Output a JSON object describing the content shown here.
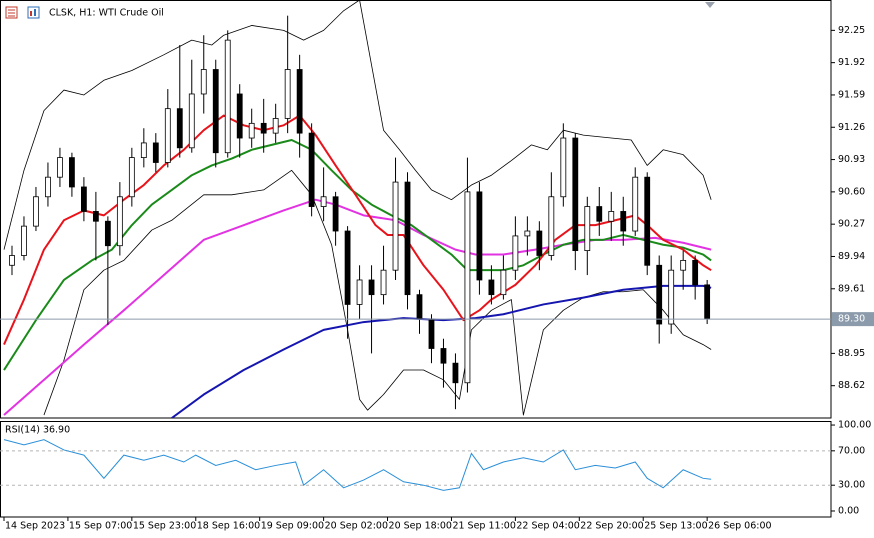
{
  "chart_data": [
    {
      "type": "candlestick",
      "title": "CLSK, H1:  WTI Crude Oil",
      "x": [
        2,
        5,
        8,
        11,
        14,
        17,
        20,
        23,
        26,
        29,
        32,
        35,
        38,
        41,
        44,
        47,
        50,
        53,
        56,
        59,
        62,
        65,
        68,
        71,
        74,
        77,
        80,
        83,
        86,
        89,
        92,
        95,
        98,
        101,
        104,
        107,
        110,
        113,
        116,
        119,
        122,
        125,
        128,
        131,
        134,
        137,
        140,
        143,
        146,
        149,
        152,
        155,
        158,
        161,
        164,
        167,
        170,
        173,
        176
      ],
      "open": [
        89.85,
        89.95,
        90.25,
        90.55,
        90.75,
        90.95,
        90.65,
        90.4,
        90.3,
        90.05,
        90.55,
        90.95,
        91.1,
        90.9,
        91.45,
        91.05,
        91.6,
        91.85,
        91,
        91.6,
        91.15,
        91.3,
        91.2,
        91.35,
        91.85,
        91.2,
        90.45,
        90.55,
        90.2,
        89.45,
        89.7,
        89.55,
        89.8,
        90.7,
        89.55,
        89.3,
        89,
        88.85,
        88.65,
        90.6,
        89.7,
        89.55,
        89.8,
        90.15,
        90.2,
        89.95,
        90.55,
        91.15,
        90,
        90.45,
        90.3,
        90.4,
        90.2,
        90.75,
        89.85,
        89.25,
        89.8,
        89.9,
        89.65
      ],
      "high": [
        90.05,
        90.35,
        90.65,
        90.9,
        91.05,
        91,
        90.75,
        90.6,
        90.35,
        90.7,
        91.05,
        91.25,
        91.2,
        91.65,
        92.1,
        91.95,
        92.2,
        91.95,
        92.25,
        91.7,
        91.45,
        91.55,
        91.5,
        92.4,
        92,
        91.3,
        90.85,
        90.6,
        90.25,
        89.85,
        89.85,
        90.05,
        90.95,
        90.8,
        89.6,
        89.35,
        89.1,
        88.95,
        90.95,
        90.7,
        89.85,
        89.95,
        90.35,
        90.35,
        90.3,
        90.8,
        91.3,
        91.2,
        90.55,
        90.65,
        90.6,
        90.55,
        90.85,
        90.8,
        89.95,
        89.95,
        90,
        89.95,
        89.7
      ],
      "low": [
        89.75,
        89.9,
        90.2,
        90.45,
        90.65,
        90.55,
        90.3,
        89.9,
        89.24,
        89.95,
        90.45,
        90.85,
        90.8,
        90.85,
        90.95,
        91,
        91.4,
        90.85,
        90.95,
        90.95,
        91.05,
        91,
        91.1,
        91.2,
        90.95,
        90.35,
        90.3,
        90.05,
        89.1,
        89.3,
        88.95,
        89.45,
        89.7,
        89.4,
        89.15,
        88.85,
        88.6,
        88.38,
        88.55,
        89.55,
        89.45,
        89.5,
        89.7,
        89.95,
        89.8,
        89.9,
        90.45,
        89.8,
        89.75,
        90.15,
        90.1,
        90.05,
        90.15,
        89.75,
        89.05,
        89.15,
        89.6,
        89.5,
        89.25
      ],
      "close": [
        89.95,
        90.25,
        90.55,
        90.75,
        90.95,
        90.65,
        90.4,
        90.3,
        90.05,
        90.55,
        90.95,
        91.1,
        90.9,
        91.45,
        91.05,
        91.6,
        91.85,
        91,
        92.15,
        91.15,
        91.3,
        91.2,
        91.35,
        91.85,
        91.2,
        90.45,
        90.55,
        90.2,
        89.45,
        89.7,
        89.55,
        89.8,
        90.7,
        89.55,
        89.3,
        89,
        88.85,
        88.65,
        90.6,
        89.7,
        89.55,
        89.8,
        90.15,
        90.2,
        89.95,
        90.55,
        91.15,
        90,
        90.45,
        90.3,
        90.4,
        90.2,
        90.75,
        89.85,
        89.25,
        89.8,
        89.9,
        89.65,
        89.3
      ],
      "up_color": "#ffffff",
      "down_color": "#000000",
      "wick_color": "#000000",
      "series": [
        {
          "color": "#000000",
          "x": [
            0,
            5,
            10,
            15,
            20,
            25,
            32,
            40,
            47,
            52,
            55,
            62,
            70,
            75,
            80,
            85,
            89,
            95,
            99,
            103,
            107,
            112,
            117,
            122,
            127,
            132,
            136,
            140,
            145,
            152,
            157,
            161,
            165,
            170,
            175,
            177
          ],
          "values": [
            90.01,
            90.82,
            91.43,
            91.64,
            91.59,
            91.74,
            91.84,
            92,
            92.15,
            92.1,
            92.2,
            92.3,
            92.25,
            92.15,
            92.25,
            92.45,
            92.56,
            91.23,
            91.03,
            90.82,
            90.62,
            90.52,
            90.67,
            90.77,
            90.92,
            91.08,
            91.03,
            91.23,
            91.18,
            91.15,
            91.13,
            90.87,
            91.03,
            90.98,
            90.77,
            90.52
          ]
        },
        {
          "color": "#000000",
          "x": [
            10,
            15,
            20,
            25,
            30,
            37,
            42,
            50,
            57,
            65,
            72,
            77,
            82,
            86,
            89,
            91,
            95,
            100,
            105,
            110,
            114,
            117,
            122,
            127,
            130,
            135,
            140,
            145,
            150,
            155,
            160,
            165,
            170,
            175,
            177
          ],
          "values": [
            88.32,
            88.88,
            89.6,
            89.8,
            89.9,
            90.21,
            90.31,
            90.57,
            90.57,
            90.62,
            90.82,
            90.57,
            90.06,
            89.19,
            88.48,
            88.37,
            88.53,
            88.78,
            88.78,
            88.68,
            88.48,
            89.19,
            89.39,
            89.5,
            88.32,
            89.19,
            89.39,
            89.52,
            89.58,
            89.58,
            89.6,
            89.39,
            89.14,
            89.04,
            88.99
          ]
        },
        {
          "color": "#1515b0",
          "x": [
            42,
            50,
            60,
            70,
            80,
            90,
            100,
            110,
            118,
            125,
            135,
            145,
            155,
            165,
            175,
            177
          ],
          "values": [
            88.29,
            88.53,
            88.78,
            88.99,
            89.19,
            89.27,
            89.31,
            89.29,
            89.31,
            89.35,
            89.45,
            89.52,
            89.6,
            89.64,
            89.64,
            89.62
          ]
        },
        {
          "color": "#e233e2",
          "x": [
            0,
            10,
            20,
            30,
            40,
            50,
            60,
            70,
            78,
            83,
            90,
            98,
            105,
            113,
            118,
            125,
            133,
            140,
            148,
            155,
            163,
            170,
            177
          ],
          "values": [
            88.32,
            88.68,
            89.04,
            89.39,
            89.75,
            90.11,
            90.26,
            90.41,
            90.52,
            90.47,
            90.36,
            90.31,
            90.16,
            90.01,
            89.96,
            89.96,
            90.01,
            90.06,
            90.11,
            90.11,
            90.13,
            90.08,
            90.01
          ]
        },
        {
          "color": "#1a8a1a",
          "x": [
            0,
            8,
            15,
            22,
            27,
            32,
            37,
            42,
            47,
            52,
            57,
            62,
            67,
            72,
            77,
            82,
            87,
            92,
            97,
            102,
            107,
            112,
            116,
            120,
            125,
            130,
            135,
            140,
            145,
            150,
            155,
            160,
            165,
            170,
            175,
            177
          ],
          "values": [
            88.78,
            89.29,
            89.7,
            89.9,
            90.01,
            90.26,
            90.47,
            90.62,
            90.77,
            90.87,
            90.94,
            91.03,
            91.08,
            91.13,
            91.03,
            90.82,
            90.62,
            90.47,
            90.36,
            90.26,
            90.11,
            89.96,
            89.8,
            89.8,
            89.8,
            89.85,
            89.96,
            90.06,
            90.11,
            90.11,
            90.16,
            90.11,
            90.06,
            90.03,
            89.96,
            89.9
          ]
        },
        {
          "color": "#e8131b",
          "x": [
            0,
            5,
            10,
            15,
            20,
            25,
            30,
            35,
            40,
            45,
            50,
            55,
            60,
            65,
            70,
            74,
            78,
            83,
            88,
            93,
            96,
            100,
            105,
            110,
            115,
            119,
            122,
            128,
            133,
            138,
            143,
            148,
            153,
            158,
            161,
            165,
            170,
            175,
            177
          ],
          "values": [
            89.04,
            89.5,
            90.01,
            90.31,
            90.41,
            90.36,
            90.52,
            90.67,
            90.87,
            91.03,
            91.23,
            91.38,
            91.28,
            91.23,
            91.28,
            91.38,
            91.18,
            90.87,
            90.57,
            90.26,
            90.16,
            90.16,
            89.85,
            89.6,
            89.29,
            89.39,
            89.5,
            89.65,
            89.85,
            90.11,
            90.26,
            90.26,
            90.31,
            90.36,
            90.26,
            90.11,
            90.01,
            89.85,
            89.8
          ]
        }
      ],
      "last_price": {
        "value": 89.3,
        "label": "89.30"
      },
      "last_price_color": "#8c9bab",
      "xlim": [
        -1,
        207
      ],
      "ylim": [
        88.29,
        92.56
      ],
      "yticks": [
        92.25,
        91.92,
        91.59,
        91.26,
        90.93,
        {
          "value": 90.6,
          "label": "90.60"
        },
        90.27,
        89.94,
        89.61,
        88.95,
        88.62
      ]
    },
    {
      "type": "line",
      "title": "RSI(14) 36.90",
      "color": "#2a8fd8",
      "x": [
        0,
        5,
        10,
        15,
        20,
        25,
        30,
        35,
        40,
        45,
        48,
        53,
        58,
        63,
        68,
        73,
        75,
        80,
        85,
        90,
        95,
        100,
        105,
        110,
        114,
        117,
        120,
        125,
        130,
        135,
        140,
        143,
        148,
        153,
        158,
        161,
        165,
        170,
        175,
        177
      ],
      "values": [
        83,
        77,
        83,
        71,
        65,
        38,
        65,
        59,
        65,
        57,
        65,
        53,
        59,
        48,
        53,
        57,
        30,
        48,
        27,
        36,
        48,
        34,
        30,
        24,
        27,
        67,
        48,
        57,
        62,
        57,
        71,
        48,
        53,
        50,
        57,
        38,
        27,
        48,
        38,
        36.9
      ],
      "xlim": [
        -1,
        207
      ],
      "ylim": [
        -7,
        104.7
      ],
      "yticks": [
        {
          "value": 100,
          "label": "100.00"
        },
        {
          "value": 70,
          "label": "70.00"
        },
        {
          "value": 30,
          "label": "30.00"
        },
        {
          "value": 0,
          "label": "0.00"
        }
      ],
      "xticks": [
        {
          "value": 0,
          "label": "14 Sep 2023"
        },
        {
          "value": 16,
          "label": "15 Sep 07:00"
        },
        {
          "value": 32,
          "label": "15 Sep 23:00"
        },
        {
          "value": 48,
          "label": "18 Sep 16:00"
        },
        {
          "value": 64,
          "label": "19 Sep 09:00"
        },
        {
          "value": 80,
          "label": "20 Sep 02:00"
        },
        {
          "value": 96,
          "label": "20 Sep 18:00"
        },
        {
          "value": 112,
          "label": "21 Sep 11:00"
        },
        {
          "value": 128,
          "label": "22 Sep 04:00"
        },
        {
          "value": 144,
          "label": "22 Sep 20:00"
        },
        {
          "value": 160,
          "label": "25 Sep 13:00"
        },
        {
          "value": 176,
          "label": "26 Sep 06:00"
        }
      ]
    }
  ]
}
